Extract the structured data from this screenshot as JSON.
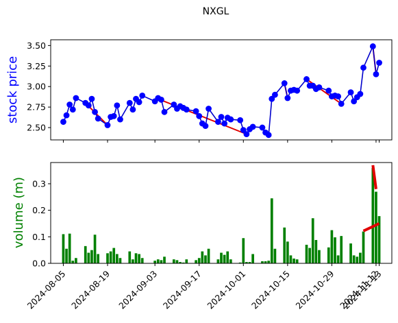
{
  "chart_data": [
    {
      "type": "line",
      "title": "NXGL",
      "xlabel": "",
      "ylabel": "stock price",
      "ylabel_color": "#0000ff",
      "line_color": "#0000cc",
      "marker_color": "#0000ff",
      "trend_color": "#e00000",
      "x_range": [
        "2024-08-01",
        "2024-11-17"
      ],
      "ylim": [
        2.35,
        3.57
      ],
      "yticks": [
        2.5,
        2.75,
        3.0,
        3.25,
        3.5
      ],
      "ytick_labels": [
        "2.50",
        "2.75",
        "3.00",
        "3.25",
        "3.50"
      ],
      "series": [
        {
          "x": [
            "2024-08-05",
            "2024-08-06",
            "2024-08-07",
            "2024-08-08",
            "2024-08-09",
            "2024-08-12",
            "2024-08-13",
            "2024-08-14",
            "2024-08-15",
            "2024-08-16",
            "2024-08-19",
            "2024-08-20",
            "2024-08-21",
            "2024-08-22",
            "2024-08-23",
            "2024-08-26",
            "2024-08-27",
            "2024-08-28",
            "2024-08-29",
            "2024-08-30",
            "2024-09-03",
            "2024-09-04",
            "2024-09-05",
            "2024-09-06",
            "2024-09-09",
            "2024-09-10",
            "2024-09-11",
            "2024-09-12",
            "2024-09-13",
            "2024-09-16",
            "2024-09-17",
            "2024-09-18",
            "2024-09-19",
            "2024-09-20",
            "2024-09-23",
            "2024-09-24",
            "2024-09-25",
            "2024-09-26",
            "2024-09-27",
            "2024-09-30",
            "2024-10-01",
            "2024-10-02",
            "2024-10-03",
            "2024-10-04",
            "2024-10-07",
            "2024-10-08",
            "2024-10-09",
            "2024-10-10",
            "2024-10-11",
            "2024-10-14",
            "2024-10-15",
            "2024-10-16",
            "2024-10-17",
            "2024-10-18",
            "2024-10-21",
            "2024-10-22",
            "2024-10-23",
            "2024-10-24",
            "2024-10-25",
            "2024-10-28",
            "2024-10-29",
            "2024-10-30",
            "2024-10-31",
            "2024-11-01",
            "2024-11-04",
            "2024-11-05",
            "2024-11-06",
            "2024-11-07",
            "2024-11-08",
            "2024-11-11",
            "2024-11-12",
            "2024-11-13"
          ],
          "y": [
            2.57,
            2.65,
            2.78,
            2.72,
            2.86,
            2.8,
            2.77,
            2.85,
            2.69,
            2.61,
            2.53,
            2.63,
            2.64,
            2.77,
            2.6,
            2.8,
            2.72,
            2.85,
            2.81,
            2.89,
            2.82,
            2.86,
            2.84,
            2.69,
            2.78,
            2.73,
            2.76,
            2.74,
            2.72,
            2.7,
            2.64,
            2.55,
            2.52,
            2.73,
            2.57,
            2.63,
            2.55,
            2.62,
            2.6,
            2.59,
            2.47,
            2.42,
            2.48,
            2.51,
            2.5,
            2.44,
            2.41,
            2.85,
            2.9,
            3.04,
            2.86,
            2.95,
            2.96,
            2.95,
            3.09,
            3.01,
            3.01,
            2.97,
            2.99,
            2.95,
            2.88,
            2.89,
            2.88,
            2.79,
            2.93,
            2.82,
            2.87,
            2.91,
            3.23,
            3.49,
            3.15,
            3.29
          ]
        }
      ],
      "trend_segments": [
        {
          "x": [
            "2024-08-12",
            "2024-08-19"
          ],
          "y": [
            2.8,
            2.53
          ]
        },
        {
          "x": [
            "2024-09-04",
            "2024-10-02"
          ],
          "y": [
            2.85,
            2.42
          ]
        },
        {
          "x": [
            "2024-10-14",
            "2024-10-15"
          ],
          "y": [
            3.04,
            2.86
          ]
        },
        {
          "x": [
            "2024-10-21",
            "2024-11-01"
          ],
          "y": [
            3.09,
            2.79
          ]
        },
        {
          "x": [
            "2024-11-11",
            "2024-11-12"
          ],
          "y": [
            3.49,
            3.15
          ]
        }
      ]
    },
    {
      "type": "bar",
      "title": "",
      "xlabel": "",
      "ylabel": "volume (m)",
      "ylabel_color": "#008000",
      "bar_color": "#008000",
      "trend_color": "#e00000",
      "x_range": [
        "2024-08-01",
        "2024-11-17"
      ],
      "ylim": [
        0,
        0.38
      ],
      "yticks": [
        0.0,
        0.1,
        0.2,
        0.3
      ],
      "ytick_labels": [
        "0.0",
        "0.1",
        "0.2",
        "0.3"
      ],
      "xticks": [
        "2024-08-05",
        "2024-08-19",
        "2024-09-03",
        "2024-09-17",
        "2024-10-01",
        "2024-10-15",
        "2024-10-29",
        "2024-11-12",
        "2024-11-13"
      ],
      "xtick_labels": [
        "2024-08-05",
        "2024-08-19",
        "2024-09-03",
        "2024-09-17",
        "2024-10-01",
        "2024-10-15",
        "2024-10-29",
        "2024-11-12",
        "2024-11-13"
      ],
      "series": [
        {
          "x": [
            "2024-08-05",
            "2024-08-06",
            "2024-08-07",
            "2024-08-08",
            "2024-08-09",
            "2024-08-12",
            "2024-08-13",
            "2024-08-14",
            "2024-08-15",
            "2024-08-16",
            "2024-08-19",
            "2024-08-20",
            "2024-08-21",
            "2024-08-22",
            "2024-08-23",
            "2024-08-26",
            "2024-08-27",
            "2024-08-28",
            "2024-08-29",
            "2024-08-30",
            "2024-09-03",
            "2024-09-04",
            "2024-09-05",
            "2024-09-06",
            "2024-09-09",
            "2024-09-10",
            "2024-09-11",
            "2024-09-12",
            "2024-09-13",
            "2024-09-16",
            "2024-09-17",
            "2024-09-18",
            "2024-09-19",
            "2024-09-20",
            "2024-09-23",
            "2024-09-24",
            "2024-09-25",
            "2024-09-26",
            "2024-09-27",
            "2024-09-30",
            "2024-10-01",
            "2024-10-02",
            "2024-10-03",
            "2024-10-04",
            "2024-10-07",
            "2024-10-08",
            "2024-10-09",
            "2024-10-10",
            "2024-10-11",
            "2024-10-14",
            "2024-10-15",
            "2024-10-16",
            "2024-10-17",
            "2024-10-18",
            "2024-10-21",
            "2024-10-22",
            "2024-10-23",
            "2024-10-24",
            "2024-10-25",
            "2024-10-28",
            "2024-10-29",
            "2024-10-30",
            "2024-10-31",
            "2024-11-01",
            "2024-11-04",
            "2024-11-05",
            "2024-11-06",
            "2024-11-07",
            "2024-11-08",
            "2024-11-11",
            "2024-11-12",
            "2024-11-13"
          ],
          "y": [
            0.11,
            0.055,
            0.112,
            0.01,
            0.02,
            0.065,
            0.04,
            0.05,
            0.108,
            0.035,
            0.038,
            0.045,
            0.058,
            0.035,
            0.02,
            0.045,
            0.015,
            0.038,
            0.035,
            0.02,
            0.01,
            0.015,
            0.012,
            0.025,
            0.015,
            0.012,
            0.005,
            0.003,
            0.015,
            0.012,
            0.02,
            0.045,
            0.03,
            0.055,
            0.015,
            0.04,
            0.032,
            0.045,
            0.015,
            0.003,
            0.095,
            0.005,
            0.005,
            0.035,
            0.008,
            0.008,
            0.01,
            0.245,
            0.055,
            0.135,
            0.082,
            0.03,
            0.018,
            0.015,
            0.07,
            0.058,
            0.17,
            0.088,
            0.05,
            0.06,
            0.125,
            0.098,
            0.03,
            0.103,
            0.075,
            0.03,
            0.025,
            0.04,
            0.12,
            0.36,
            0.27,
            0.178
          ]
        }
      ],
      "trend_segments": [
        {
          "x": [
            "2024-11-08",
            "2024-11-13"
          ],
          "y": [
            0.122,
            0.15
          ]
        },
        {
          "x": [
            "2024-11-11",
            "2024-11-12"
          ],
          "y": [
            0.37,
            0.28
          ]
        }
      ]
    }
  ]
}
